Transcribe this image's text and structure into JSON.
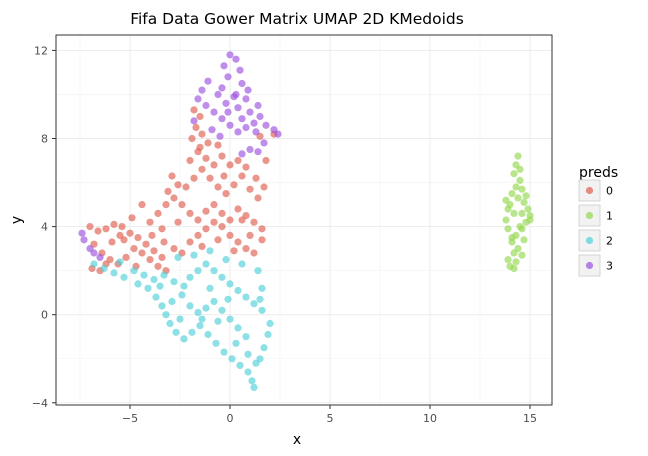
{
  "chart_data": {
    "type": "scatter",
    "title": "Fifa Data Gower Matrix UMAP 2D KMedoids",
    "xlabel": "x",
    "ylabel": "y",
    "xlim": [
      -8.7,
      16.1
    ],
    "ylim": [
      -4.1,
      12.7
    ],
    "x_ticks": [
      -5,
      0,
      5,
      10,
      15
    ],
    "y_ticks": [
      -4,
      0,
      4,
      8,
      12
    ],
    "x_tick_labels": [
      "−5",
      "0",
      "5",
      "10",
      "15"
    ],
    "y_tick_labels": [
      "−4",
      "0",
      "4",
      "8",
      "12"
    ],
    "grid": true,
    "legend": {
      "title": "preds",
      "position": "right",
      "entries": [
        {
          "label": "0",
          "color": "#de5d4f"
        },
        {
          "label": "1",
          "color": "#93d84f"
        },
        {
          "label": "2",
          "color": "#4fcfd9"
        },
        {
          "label": "3",
          "color": "#9c51df"
        }
      ]
    },
    "series": [
      {
        "name": "0",
        "color": "#de5d4f",
        "points": [
          [
            -7.0,
            4.0
          ],
          [
            -6.6,
            3.8
          ],
          [
            -6.2,
            3.9
          ],
          [
            -5.8,
            4.1
          ],
          [
            -5.4,
            4.0
          ],
          [
            -5.0,
            3.7
          ],
          [
            -4.6,
            3.5
          ],
          [
            -4.2,
            3.2
          ],
          [
            -3.8,
            2.9
          ],
          [
            -3.4,
            2.6
          ],
          [
            -6.8,
            3.2
          ],
          [
            -6.4,
            2.8
          ],
          [
            -6.0,
            2.5
          ],
          [
            -5.6,
            2.3
          ],
          [
            -5.2,
            2.6
          ],
          [
            -4.8,
            3.0
          ],
          [
            -4.4,
            2.8
          ],
          [
            -4.0,
            2.5
          ],
          [
            -3.6,
            2.2
          ],
          [
            -3.2,
            2.0
          ],
          [
            -6.9,
            2.1
          ],
          [
            -6.5,
            2.0
          ],
          [
            -5.9,
            3.3
          ],
          [
            -5.3,
            3.4
          ],
          [
            -4.7,
            2.2
          ],
          [
            -3.9,
            3.6
          ],
          [
            -3.3,
            3.3
          ],
          [
            -2.8,
            3.0
          ],
          [
            -2.4,
            2.8
          ],
          [
            -2.0,
            3.3
          ],
          [
            -1.6,
            3.6
          ],
          [
            -1.2,
            3.9
          ],
          [
            -0.8,
            4.2
          ],
          [
            -0.4,
            4.0
          ],
          [
            0.0,
            3.6
          ],
          [
            0.4,
            3.3
          ],
          [
            0.8,
            3.0
          ],
          [
            1.2,
            2.8
          ],
          [
            1.6,
            3.4
          ],
          [
            0.6,
            4.3
          ],
          [
            -4.0,
            4.2
          ],
          [
            -3.6,
            4.6
          ],
          [
            -3.2,
            5.0
          ],
          [
            -2.8,
            5.3
          ],
          [
            -2.4,
            5.0
          ],
          [
            -2.0,
            4.6
          ],
          [
            -1.6,
            4.3
          ],
          [
            -1.2,
            4.7
          ],
          [
            -0.8,
            5.0
          ],
          [
            -0.4,
            4.6
          ],
          [
            0.0,
            4.3
          ],
          [
            0.4,
            4.8
          ],
          [
            0.8,
            4.5
          ],
          [
            1.2,
            4.2
          ],
          [
            1.6,
            3.9
          ],
          [
            -2.2,
            5.8
          ],
          [
            -1.8,
            6.2
          ],
          [
            -1.4,
            6.6
          ],
          [
            -1.0,
            6.2
          ],
          [
            -0.6,
            5.8
          ],
          [
            -0.2,
            5.5
          ],
          [
            0.2,
            5.9
          ],
          [
            0.6,
            6.3
          ],
          [
            1.0,
            5.7
          ],
          [
            1.4,
            5.3
          ],
          [
            -2.0,
            7.0
          ],
          [
            -1.6,
            7.4
          ],
          [
            -1.2,
            7.1
          ],
          [
            -0.8,
            6.8
          ],
          [
            -0.4,
            7.2
          ],
          [
            0.0,
            6.8
          ],
          [
            0.4,
            7.0
          ],
          [
            -1.9,
            8.0
          ],
          [
            -1.7,
            8.5
          ],
          [
            -1.5,
            9.0
          ],
          [
            -1.4,
            8.2
          ],
          [
            -1.1,
            7.8
          ],
          [
            -0.6,
            7.7
          ],
          [
            -1.8,
            9.3
          ],
          [
            -1.5,
            7.6
          ],
          [
            -2.6,
            5.9
          ],
          [
            -2.9,
            6.3
          ],
          [
            -3.1,
            5.6
          ],
          [
            -0.3,
            6.3
          ],
          [
            0.8,
            6.7
          ],
          [
            1.3,
            6.2
          ],
          [
            1.7,
            5.8
          ],
          [
            2.2,
            8.2
          ],
          [
            1.8,
            7.0
          ],
          [
            1.5,
            8.1
          ],
          [
            -5.5,
            3.6
          ],
          [
            -6.2,
            2.3
          ],
          [
            -4.9,
            4.4
          ],
          [
            -4.4,
            5.0
          ],
          [
            -3.4,
            3.9
          ],
          [
            -2.6,
            4.2
          ],
          [
            -1.4,
            3.1
          ],
          [
            -0.6,
            3.4
          ],
          [
            0.2,
            2.9
          ],
          [
            1.0,
            3.6
          ]
        ]
      },
      {
        "name": "1",
        "color": "#93d84f",
        "points": [
          [
            14.4,
            7.2
          ],
          [
            14.3,
            6.8
          ],
          [
            14.2,
            6.4
          ],
          [
            14.5,
            6.1
          ],
          [
            14.3,
            5.8
          ],
          [
            14.1,
            5.5
          ],
          [
            14.4,
            5.3
          ],
          [
            14.7,
            5.1
          ],
          [
            14.9,
            4.8
          ],
          [
            15.0,
            4.5
          ],
          [
            14.8,
            4.2
          ],
          [
            14.6,
            3.9
          ],
          [
            14.3,
            3.6
          ],
          [
            14.1,
            3.3
          ],
          [
            14.4,
            3.0
          ],
          [
            14.6,
            2.7
          ],
          [
            14.3,
            2.4
          ],
          [
            14.0,
            2.2
          ],
          [
            14.2,
            2.1
          ],
          [
            13.9,
            4.8
          ],
          [
            13.8,
            4.3
          ],
          [
            13.9,
            3.9
          ],
          [
            14.0,
            5.0
          ],
          [
            14.6,
            5.7
          ],
          [
            14.2,
            4.6
          ],
          [
            14.5,
            4.0
          ],
          [
            14.7,
            3.4
          ],
          [
            14.2,
            2.8
          ],
          [
            13.9,
            2.5
          ],
          [
            14.5,
            6.6
          ],
          [
            14.8,
            5.4
          ],
          [
            15.0,
            4.3
          ],
          [
            13.8,
            5.2
          ],
          [
            14.1,
            3.5
          ],
          [
            14.6,
            4.6
          ]
        ]
      },
      {
        "name": "2",
        "color": "#4fcfd9",
        "points": [
          [
            -6.8,
            2.3
          ],
          [
            -6.3,
            2.1
          ],
          [
            -5.8,
            1.9
          ],
          [
            -5.3,
            1.7
          ],
          [
            -4.8,
            2.0
          ],
          [
            -4.3,
            1.8
          ],
          [
            -3.8,
            1.6
          ],
          [
            -3.3,
            1.8
          ],
          [
            -2.8,
            1.5
          ],
          [
            -2.3,
            1.3
          ],
          [
            -4.1,
            1.2
          ],
          [
            -3.7,
            0.8
          ],
          [
            -3.4,
            0.4
          ],
          [
            -3.2,
            0.0
          ],
          [
            -3.0,
            -0.4
          ],
          [
            -2.7,
            -0.8
          ],
          [
            -2.3,
            -1.1
          ],
          [
            -1.9,
            -0.8
          ],
          [
            -1.5,
            -0.5
          ],
          [
            -1.1,
            -0.9
          ],
          [
            -0.7,
            -1.3
          ],
          [
            -0.3,
            -1.7
          ],
          [
            0.1,
            -2.0
          ],
          [
            0.5,
            -2.3
          ],
          [
            0.9,
            -2.6
          ],
          [
            1.1,
            -3.0
          ],
          [
            1.2,
            -3.3
          ],
          [
            1.5,
            -2.0
          ],
          [
            1.7,
            -1.5
          ],
          [
            1.9,
            -0.9
          ],
          [
            2.0,
            -0.4
          ],
          [
            1.6,
            0.2
          ],
          [
            1.2,
            0.5
          ],
          [
            0.8,
            0.8
          ],
          [
            0.4,
            1.1
          ],
          [
            0.0,
            1.4
          ],
          [
            -0.4,
            1.7
          ],
          [
            -0.8,
            2.0
          ],
          [
            -1.2,
            2.3
          ],
          [
            -1.6,
            2.0
          ],
          [
            -2.0,
            1.7
          ],
          [
            -2.4,
            0.9
          ],
          [
            -2.0,
            0.4
          ],
          [
            -1.6,
            0.1
          ],
          [
            -1.2,
            0.3
          ],
          [
            -0.8,
            0.6
          ],
          [
            -0.4,
            0.2
          ],
          [
            0.0,
            -0.2
          ],
          [
            0.4,
            -0.6
          ],
          [
            0.8,
            -1.0
          ],
          [
            -2.6,
            2.6
          ],
          [
            -1.8,
            2.7
          ],
          [
            -1.0,
            2.9
          ],
          [
            -0.2,
            2.5
          ],
          [
            0.6,
            2.3
          ],
          [
            1.4,
            2.0
          ],
          [
            1.6,
            1.2
          ],
          [
            1.5,
            0.7
          ],
          [
            -0.6,
            -0.3
          ],
          [
            -1.4,
            -0.2
          ],
          [
            -2.9,
            0.6
          ],
          [
            -2.5,
            -0.2
          ],
          [
            -3.5,
            1.3
          ],
          [
            -4.6,
            1.4
          ],
          [
            -5.5,
            2.4
          ],
          [
            -0.1,
            0.7
          ],
          [
            0.3,
            -1.3
          ],
          [
            0.9,
            -1.8
          ],
          [
            1.3,
            -2.2
          ],
          [
            -1.0,
            1.2
          ]
        ]
      },
      {
        "name": "3",
        "color": "#9c51df",
        "points": [
          [
            -7.4,
            3.7
          ],
          [
            -7.3,
            3.4
          ],
          [
            -7.0,
            3.0
          ],
          [
            -6.8,
            2.8
          ],
          [
            -6.5,
            2.6
          ],
          [
            0.0,
            11.8
          ],
          [
            0.3,
            11.6
          ],
          [
            -0.3,
            11.3
          ],
          [
            0.5,
            11.1
          ],
          [
            -0.1,
            10.8
          ],
          [
            0.6,
            10.5
          ],
          [
            -0.4,
            10.3
          ],
          [
            0.3,
            10.0
          ],
          [
            0.8,
            9.8
          ],
          [
            -0.2,
            9.6
          ],
          [
            0.4,
            9.4
          ],
          [
            1.0,
            9.2
          ],
          [
            1.4,
            9.5
          ],
          [
            1.5,
            9.0
          ],
          [
            1.2,
            8.7
          ],
          [
            0.8,
            8.5
          ],
          [
            0.4,
            8.3
          ],
          [
            0.0,
            8.6
          ],
          [
            -0.4,
            8.9
          ],
          [
            -0.8,
            9.2
          ],
          [
            -1.2,
            9.5
          ],
          [
            -1.6,
            9.8
          ],
          [
            -1.4,
            10.2
          ],
          [
            -1.1,
            10.6
          ],
          [
            -1.8,
            8.8
          ],
          [
            -0.9,
            8.4
          ],
          [
            -0.5,
            8.1
          ],
          [
            1.8,
            8.6
          ],
          [
            2.2,
            8.4
          ],
          [
            2.4,
            8.2
          ],
          [
            1.7,
            7.8
          ],
          [
            1.4,
            7.4
          ],
          [
            1.0,
            7.5
          ],
          [
            0.6,
            7.3
          ],
          [
            -0.1,
            9.2
          ],
          [
            0.2,
            9.9
          ],
          [
            0.9,
            10.2
          ],
          [
            -0.6,
            10.0
          ],
          [
            1.3,
            8.3
          ],
          [
            0.6,
            8.9
          ]
        ]
      }
    ]
  }
}
